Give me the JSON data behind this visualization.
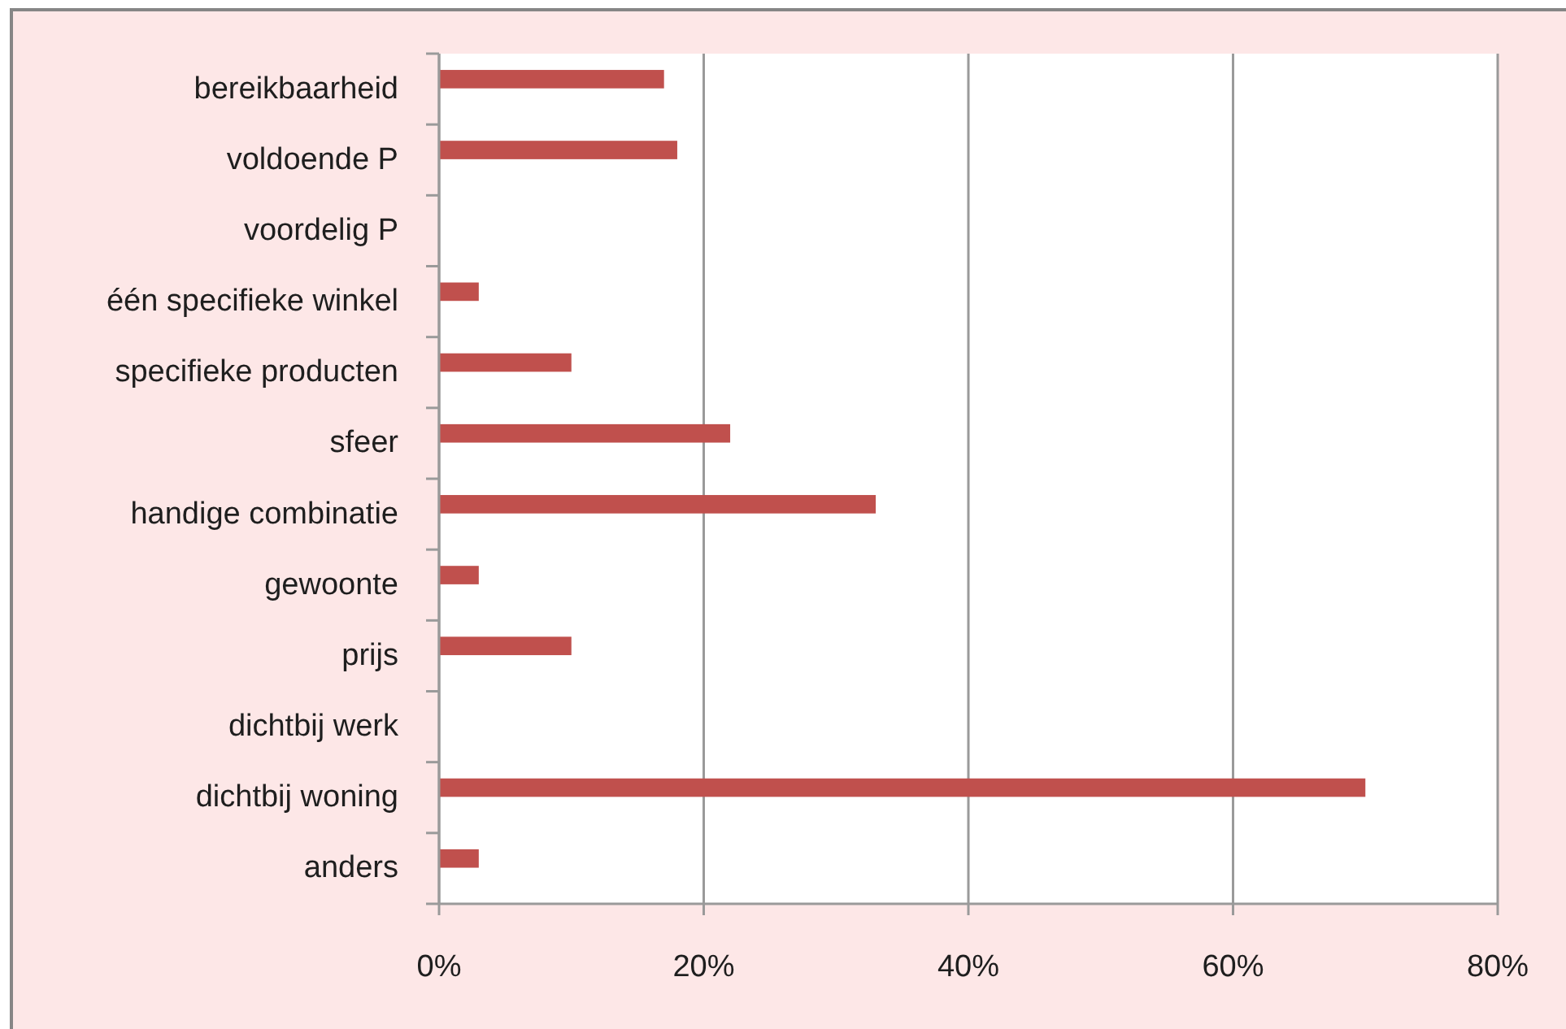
{
  "chart_data": {
    "type": "bar",
    "orientation": "horizontal",
    "categories": [
      "bereikbaarheid",
      "voldoende P",
      "voordelig P",
      "één specifieke winkel",
      "specifieke producten",
      "sfeer",
      "handige combinatie",
      "gewoonte",
      "prijs",
      "dichtbij werk",
      "dichtbij woning",
      "anders"
    ],
    "values": [
      17,
      18,
      0,
      3,
      10,
      22,
      33,
      3,
      10,
      0,
      70,
      3
    ],
    "color": "#c0504d",
    "xlim": [
      0,
      80
    ],
    "xticks": [
      {
        "value": 0,
        "label": "0%"
      },
      {
        "value": 20,
        "label": "20%"
      },
      {
        "value": 40,
        "label": "40%"
      },
      {
        "value": 60,
        "label": "60%"
      },
      {
        "value": 80,
        "label": "80%"
      }
    ],
    "grid": "x"
  }
}
